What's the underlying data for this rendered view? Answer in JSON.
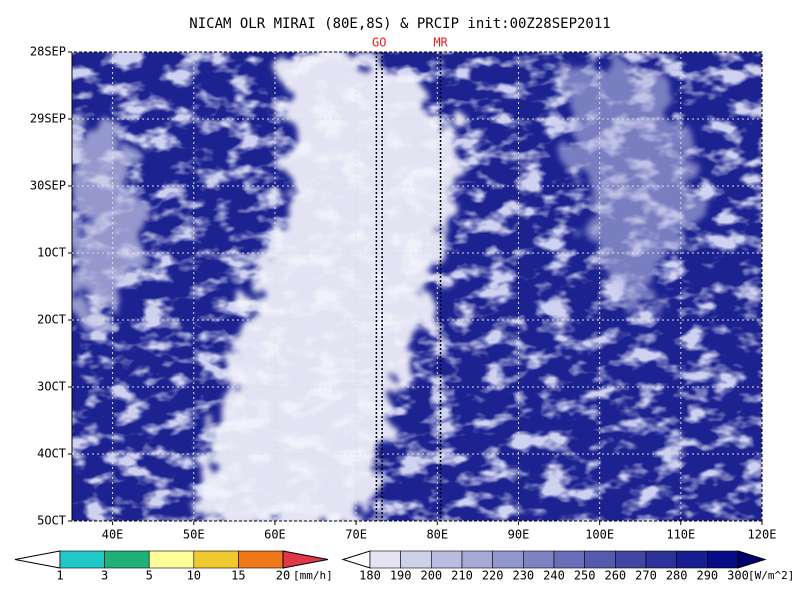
{
  "chart_data": {
    "type": "hovmoller",
    "title": "NICAM OLR MIRAI (80E,8S) & PRCIP init:00Z28SEP2011",
    "xlim": [
      35,
      120
    ],
    "xticks": [
      {
        "value": 40,
        "label": "40E"
      },
      {
        "value": 50,
        "label": "50E"
      },
      {
        "value": 60,
        "label": "60E"
      },
      {
        "value": 70,
        "label": "70E"
      },
      {
        "value": 80,
        "label": "80E"
      },
      {
        "value": 90,
        "label": "90E"
      },
      {
        "value": 100,
        "label": "100E"
      },
      {
        "value": 110,
        "label": "110E"
      },
      {
        "value": 120,
        "label": "120E"
      }
    ],
    "ylim": [
      0,
      7
    ],
    "y_direction": "down",
    "yticks": [
      {
        "value": 0,
        "label": "28SEP"
      },
      {
        "value": 1,
        "label": "29SEP"
      },
      {
        "value": 2,
        "label": "30SEP"
      },
      {
        "value": 3,
        "label": "1OCT"
      },
      {
        "value": 4,
        "label": "2OCT"
      },
      {
        "value": 5,
        "label": "3OCT"
      },
      {
        "value": 6,
        "label": "4OCT"
      },
      {
        "value": 7,
        "label": "5OCT"
      }
    ],
    "grid": true,
    "markers": [
      {
        "label": "GO",
        "x": [
          72.5,
          73.2
        ]
      },
      {
        "label": "MR",
        "x": [
          80.4
        ]
      }
    ],
    "colorbars": [
      {
        "levels": [
          1,
          3,
          5,
          10,
          15,
          20
        ],
        "unit": "[mm/h]",
        "colors": [
          "#ffffff",
          "#20c8c8",
          "#20b07a",
          "#ffff99",
          "#f0c830",
          "#f07818",
          "#e03848"
        ]
      },
      {
        "levels": [
          180,
          190,
          200,
          210,
          220,
          230,
          240,
          250,
          260,
          270,
          280,
          290,
          300
        ],
        "unit": "[W/m^2]",
        "colors": [
          "#ffffff",
          "#e4e4f4",
          "#cfd0ea",
          "#bbbde0",
          "#a6a9d6",
          "#9296cc",
          "#7d82c2",
          "#696eb8",
          "#545aae",
          "#4046a4",
          "#2b329a",
          "#171e90",
          "#050c86",
          "#000070"
        ]
      }
    ]
  }
}
